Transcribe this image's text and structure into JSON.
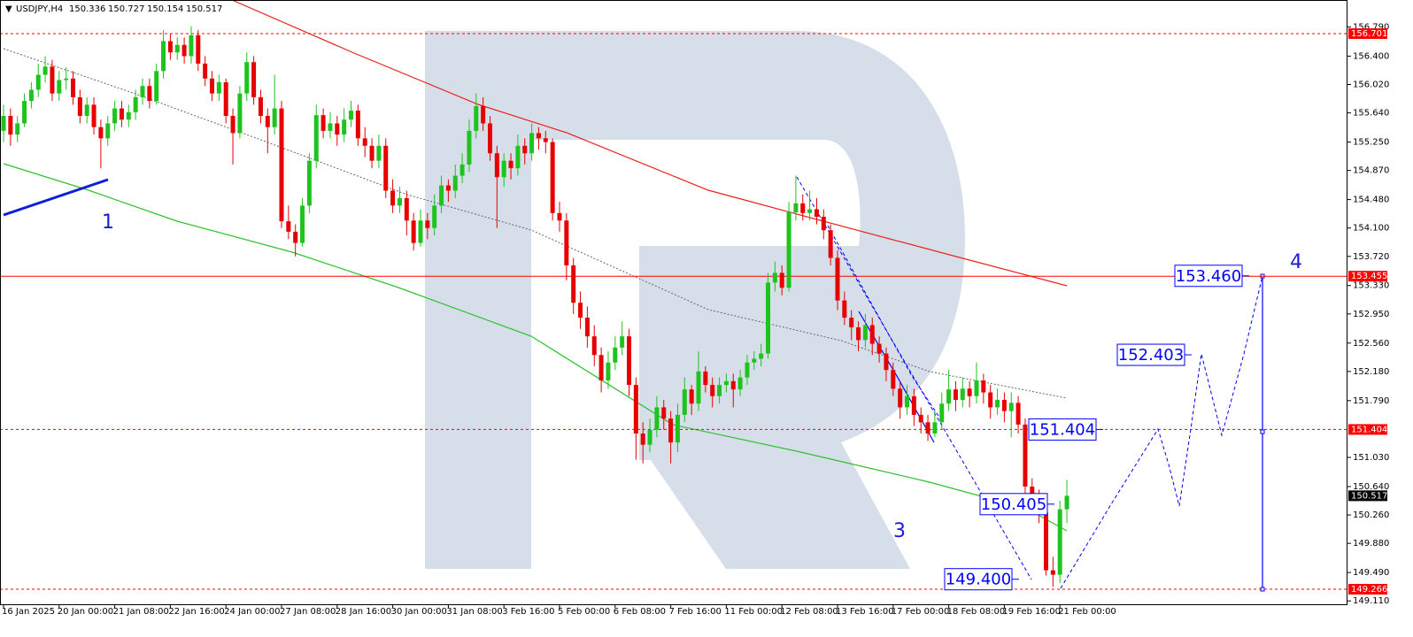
{
  "chart_data": {
    "type": "candlestick",
    "symbol": "USDJPY,H4",
    "ylim": [
      149.065,
      157.151
    ],
    "yticks": [
      {
        "value": 156.79,
        "label": "156.790"
      },
      {
        "value": 156.4,
        "label": "156.400"
      },
      {
        "value": 156.02,
        "label": "156.020"
      },
      {
        "value": 155.64,
        "label": "155.640"
      },
      {
        "value": 155.25,
        "label": "155.250"
      },
      {
        "value": 154.87,
        "label": "154.870"
      },
      {
        "value": 154.48,
        "label": "154.480"
      },
      {
        "value": 154.1,
        "label": "154.100"
      },
      {
        "value": 153.72,
        "label": "153.720"
      },
      {
        "value": 153.33,
        "label": "153.330"
      },
      {
        "value": 152.95,
        "label": "152.950"
      },
      {
        "value": 152.56,
        "label": "152.560"
      },
      {
        "value": 152.18,
        "label": "152.180"
      },
      {
        "value": 151.79,
        "label": "151.790"
      },
      {
        "value": 151.03,
        "label": "151.030"
      },
      {
        "value": 150.64,
        "label": "150.640"
      },
      {
        "value": 150.26,
        "label": "150.260"
      },
      {
        "value": 149.88,
        "label": "149.880"
      },
      {
        "value": 149.49,
        "label": "149.490"
      },
      {
        "value": 149.11,
        "label": "149.110"
      }
    ],
    "xlabels": [
      "16 Jan 2025",
      "20 Jan 00:00",
      "21 Jan 08:00",
      "22 Jan 16:00",
      "24 Jan 00:00",
      "27 Jan 08:00",
      "28 Jan 16:00",
      "30 Jan 00:00",
      "31 Jan 08:00",
      "3 Feb 16:00",
      "5 Feb 00:00",
      "6 Feb 08:00",
      "7 Feb 16:00",
      "11 Feb 00:00",
      "12 Feb 08:00",
      "13 Feb 16:00",
      "17 Feb 00:00",
      "18 Feb 08:00",
      "19 Feb 16:00",
      "21 Feb 00:00"
    ],
    "levels": [
      156.701,
      153.455,
      151.404,
      149.266
    ],
    "level_styles": [
      "dashed",
      "solid",
      "dashed",
      "dashed"
    ],
    "level_color": "#ff0000",
    "up_color": "#1ec31e",
    "down_color": "#e60000",
    "forecast_labels": [
      {
        "value": 153.46,
        "label": "153.460"
      },
      152.403,
      151.404,
      150.405,
      {
        "value": 149.4,
        "label": "149.400"
      }
    ],
    "wave_labels": [
      "1",
      "3",
      "4"
    ],
    "candles": [
      [
        155.4,
        155.75,
        155.25,
        155.6
      ],
      [
        155.6,
        155.7,
        155.2,
        155.35
      ],
      [
        155.35,
        155.6,
        155.25,
        155.5
      ],
      [
        155.5,
        155.9,
        155.45,
        155.8
      ],
      [
        155.8,
        156.05,
        155.7,
        155.95
      ],
      [
        155.95,
        156.3,
        155.85,
        156.15
      ],
      [
        156.15,
        156.4,
        156.05,
        156.26
      ],
      [
        156.26,
        156.35,
        155.8,
        155.9
      ],
      [
        155.9,
        156.2,
        155.8,
        156.08
      ],
      [
        156.08,
        156.25,
        155.95,
        156.1
      ],
      [
        156.1,
        156.2,
        155.75,
        155.85
      ],
      [
        155.85,
        155.95,
        155.5,
        155.6
      ],
      [
        155.6,
        155.85,
        155.5,
        155.75
      ],
      [
        155.75,
        155.85,
        155.35,
        155.45
      ],
      [
        155.45,
        155.55,
        154.9,
        155.3
      ],
      [
        155.3,
        155.6,
        155.2,
        155.5
      ],
      [
        155.5,
        155.8,
        155.4,
        155.7
      ],
      [
        155.7,
        155.8,
        155.45,
        155.55
      ],
      [
        155.55,
        155.75,
        155.45,
        155.65
      ],
      [
        155.65,
        155.95,
        155.55,
        155.85
      ],
      [
        155.85,
        156.1,
        155.75,
        156.0
      ],
      [
        156.0,
        156.1,
        155.7,
        155.8
      ],
      [
        155.8,
        156.3,
        155.75,
        156.2
      ],
      [
        156.2,
        156.75,
        156.1,
        156.6
      ],
      [
        156.6,
        156.7,
        156.35,
        156.45
      ],
      [
        156.45,
        156.65,
        156.35,
        156.55
      ],
      [
        156.55,
        156.65,
        156.3,
        156.4
      ],
      [
        156.4,
        156.8,
        156.3,
        156.68
      ],
      [
        156.68,
        156.75,
        156.2,
        156.3
      ],
      [
        156.3,
        156.4,
        156.0,
        156.1
      ],
      [
        156.1,
        156.2,
        155.8,
        155.9
      ],
      [
        155.9,
        156.15,
        155.8,
        156.05
      ],
      [
        156.05,
        156.1,
        155.5,
        155.6
      ],
      [
        155.6,
        155.7,
        154.95,
        155.37
      ],
      [
        155.37,
        156.0,
        155.3,
        155.9
      ],
      [
        155.9,
        156.45,
        155.8,
        156.32
      ],
      [
        156.32,
        156.4,
        155.75,
        155.85
      ],
      [
        155.85,
        155.95,
        155.5,
        155.6
      ],
      [
        155.6,
        155.7,
        155.1,
        155.45
      ],
      [
        155.45,
        156.15,
        155.35,
        155.7
      ],
      [
        155.7,
        155.8,
        154.1,
        154.19
      ],
      [
        154.19,
        154.4,
        153.95,
        154.05
      ],
      [
        154.05,
        154.15,
        153.72,
        153.9
      ],
      [
        153.9,
        154.5,
        153.85,
        154.4
      ],
      [
        154.4,
        155.1,
        154.3,
        155.0
      ],
      [
        155.0,
        155.75,
        154.9,
        155.61
      ],
      [
        155.61,
        155.7,
        155.3,
        155.4
      ],
      [
        155.4,
        155.65,
        155.3,
        155.5
      ],
      [
        155.5,
        155.6,
        155.2,
        155.35
      ],
      [
        155.35,
        155.7,
        155.25,
        155.55
      ],
      [
        155.55,
        155.8,
        155.45,
        155.67
      ],
      [
        155.67,
        155.75,
        155.2,
        155.3
      ],
      [
        155.3,
        155.45,
        155.05,
        155.2
      ],
      [
        155.2,
        155.3,
        154.9,
        155.0
      ],
      [
        155.0,
        155.35,
        154.9,
        155.2
      ],
      [
        155.2,
        155.3,
        154.5,
        154.6
      ],
      [
        154.6,
        154.75,
        154.3,
        154.4
      ],
      [
        154.4,
        154.65,
        154.3,
        154.5
      ],
      [
        154.5,
        154.6,
        154.0,
        154.2
      ],
      [
        154.2,
        154.3,
        153.8,
        153.9
      ],
      [
        153.9,
        154.35,
        153.85,
        154.2
      ],
      [
        154.2,
        154.3,
        153.95,
        154.1
      ],
      [
        154.1,
        154.55,
        154.0,
        154.4
      ],
      [
        154.4,
        154.8,
        154.3,
        154.67
      ],
      [
        154.67,
        154.75,
        154.45,
        154.6
      ],
      [
        154.6,
        154.95,
        154.5,
        154.8
      ],
      [
        154.8,
        155.1,
        154.7,
        154.95
      ],
      [
        154.95,
        155.55,
        154.85,
        155.4
      ],
      [
        155.4,
        155.9,
        155.3,
        155.73
      ],
      [
        155.73,
        155.85,
        155.4,
        155.5
      ],
      [
        155.5,
        155.6,
        155.0,
        155.1
      ],
      [
        155.1,
        155.2,
        154.1,
        154.78
      ],
      [
        154.78,
        155.1,
        154.65,
        155.0
      ],
      [
        155.0,
        155.1,
        154.75,
        154.9
      ],
      [
        154.9,
        155.35,
        154.8,
        155.2
      ],
      [
        155.2,
        155.3,
        154.95,
        155.1
      ],
      [
        155.1,
        155.5,
        155.0,
        155.37
      ],
      [
        155.37,
        155.45,
        155.15,
        155.3
      ],
      [
        155.3,
        155.4,
        155.1,
        155.25
      ],
      [
        155.25,
        155.3,
        154.2,
        154.3
      ],
      [
        154.3,
        154.45,
        154.05,
        154.2
      ],
      [
        154.2,
        154.3,
        153.4,
        153.6
      ],
      [
        153.6,
        153.7,
        152.95,
        153.1
      ],
      [
        153.1,
        153.25,
        152.75,
        152.9
      ],
      [
        152.9,
        153.05,
        152.5,
        152.65
      ],
      [
        152.65,
        152.8,
        152.25,
        152.4
      ],
      [
        152.4,
        152.5,
        151.9,
        152.06
      ],
      [
        152.06,
        152.45,
        151.95,
        152.3
      ],
      [
        152.3,
        152.65,
        152.2,
        152.5
      ],
      [
        152.5,
        152.85,
        152.4,
        152.65
      ],
      [
        152.65,
        152.75,
        151.85,
        152.0
      ],
      [
        152.0,
        152.1,
        151.0,
        151.35
      ],
      [
        151.35,
        151.5,
        150.95,
        151.2
      ],
      [
        151.2,
        151.55,
        151.1,
        151.4
      ],
      [
        151.4,
        151.85,
        151.3,
        151.7
      ],
      [
        151.7,
        151.8,
        151.4,
        151.55
      ],
      [
        151.55,
        151.65,
        150.95,
        151.23
      ],
      [
        151.23,
        151.75,
        151.1,
        151.6
      ],
      [
        151.6,
        152.1,
        151.5,
        151.94
      ],
      [
        151.94,
        152.0,
        151.6,
        151.75
      ],
      [
        151.75,
        152.45,
        151.65,
        152.18
      ],
      [
        152.18,
        152.25,
        151.9,
        152.0
      ],
      [
        152.0,
        152.1,
        151.7,
        151.85
      ],
      [
        151.85,
        152.1,
        151.75,
        152.0
      ],
      [
        152.0,
        152.15,
        151.9,
        152.05
      ],
      [
        152.05,
        152.15,
        151.7,
        151.94
      ],
      [
        151.94,
        152.2,
        151.85,
        152.1
      ],
      [
        152.1,
        152.4,
        152.0,
        152.3
      ],
      [
        152.3,
        152.45,
        152.2,
        152.35
      ],
      [
        152.35,
        152.55,
        152.25,
        152.42
      ],
      [
        152.42,
        153.5,
        152.35,
        153.37
      ],
      [
        153.37,
        153.65,
        153.25,
        153.5
      ],
      [
        153.5,
        153.6,
        153.2,
        153.3
      ],
      [
        153.3,
        154.45,
        153.25,
        154.31
      ],
      [
        154.31,
        154.8,
        154.2,
        154.43
      ],
      [
        154.43,
        154.55,
        154.2,
        154.3
      ],
      [
        154.3,
        154.6,
        154.2,
        154.35
      ],
      [
        154.35,
        154.5,
        154.15,
        154.25
      ],
      [
        154.25,
        154.35,
        153.95,
        154.07
      ],
      [
        154.07,
        154.15,
        153.6,
        153.7
      ],
      [
        153.7,
        153.8,
        153.0,
        153.13
      ],
      [
        153.13,
        153.25,
        152.8,
        152.9
      ],
      [
        152.9,
        153.0,
        152.6,
        152.77
      ],
      [
        152.77,
        152.85,
        152.45,
        152.6
      ],
      [
        152.6,
        152.95,
        152.5,
        152.8
      ],
      [
        152.8,
        152.9,
        152.4,
        152.55
      ],
      [
        152.55,
        152.65,
        152.3,
        152.42
      ],
      [
        152.42,
        152.5,
        152.05,
        152.2
      ],
      [
        152.2,
        152.3,
        151.85,
        151.95
      ],
      [
        151.95,
        152.05,
        151.55,
        151.7
      ],
      [
        151.7,
        152.0,
        151.6,
        151.85
      ],
      [
        151.85,
        151.95,
        151.45,
        151.6
      ],
      [
        151.6,
        151.7,
        151.35,
        151.5
      ],
      [
        151.5,
        151.6,
        151.25,
        151.35
      ],
      [
        151.35,
        151.65,
        151.3,
        151.5
      ],
      [
        151.5,
        151.9,
        151.4,
        151.75
      ],
      [
        151.75,
        152.2,
        151.65,
        151.94
      ],
      [
        151.94,
        152.05,
        151.65,
        151.8
      ],
      [
        151.8,
        152.1,
        151.7,
        151.95
      ],
      [
        151.95,
        152.05,
        151.7,
        151.85
      ],
      [
        151.85,
        152.3,
        151.75,
        152.06
      ],
      [
        152.06,
        152.15,
        151.75,
        151.9
      ],
      [
        151.9,
        152.0,
        151.55,
        151.7
      ],
      [
        151.7,
        151.95,
        151.6,
        151.8
      ],
      [
        151.8,
        151.9,
        151.5,
        151.65
      ],
      [
        151.65,
        151.9,
        151.3,
        151.76
      ],
      [
        151.76,
        151.85,
        151.35,
        151.47
      ],
      [
        151.47,
        151.55,
        150.55,
        150.64
      ],
      [
        150.64,
        150.75,
        150.3,
        150.45
      ],
      [
        150.45,
        150.6,
        150.15,
        150.29
      ],
      [
        150.29,
        150.4,
        149.45,
        149.52
      ],
      [
        149.52,
        149.7,
        149.3,
        149.46
      ],
      [
        149.46,
        150.45,
        149.35,
        150.336
      ],
      [
        150.336,
        150.727,
        150.154,
        150.517
      ]
    ]
  }
}
